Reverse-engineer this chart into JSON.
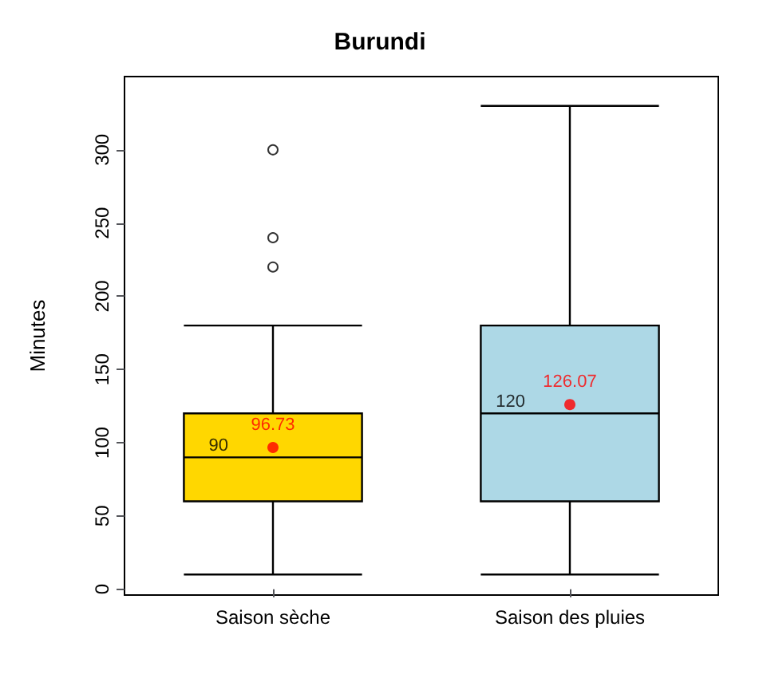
{
  "chart_data": {
    "type": "box",
    "title": "Burundi",
    "ylabel": "Minutes",
    "categories": [
      "Saison sèche",
      "Saison des pluies"
    ],
    "ylim": [
      -4,
      350
    ],
    "yticks": [
      0,
      50,
      100,
      150,
      200,
      250,
      300
    ],
    "grid": false,
    "series": [
      {
        "colors": [
          "#ffd700",
          "#add8e6"
        ],
        "boxes": [
          {
            "low": 10,
            "q1": 60,
            "median": 90,
            "q3": 120,
            "high": 180,
            "outliers": [
              220,
              240,
              300
            ]
          },
          {
            "low": 10,
            "q1": 60,
            "median": 120,
            "q3": 180,
            "high": 330
          }
        ]
      },
      {
        "type": "scatter",
        "color": "#ff0000",
        "marker": "circle",
        "x": [
          "Saison sèche",
          "Saison des pluies"
        ],
        "values": [
          96.73,
          126.07
        ],
        "value_labels": [
          "96.73",
          "126.07"
        ]
      }
    ],
    "annotations": [
      {
        "text": "90",
        "x": "Saison sèche",
        "y": 90
      },
      {
        "text": "120",
        "x": "Saison des pluies",
        "y": 120
      }
    ]
  }
}
